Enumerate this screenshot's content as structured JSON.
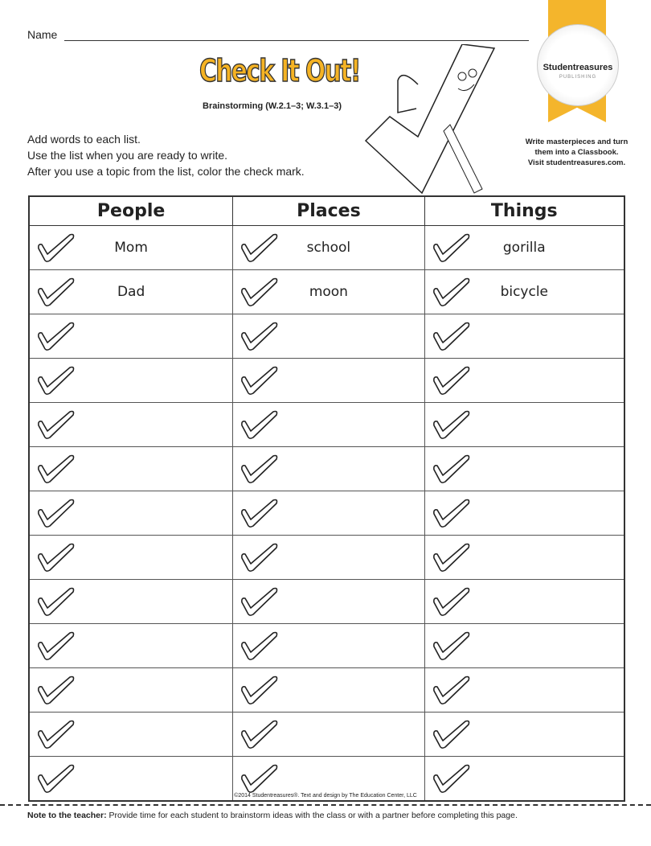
{
  "name_label": "Name",
  "title": "Check It Out!",
  "subtitle": "Brainstorming (W.2.1–3; W.3.1–3)",
  "instructions": [
    "Add words to each list.",
    "Use the list when you are ready to write.",
    "After you use a topic from the list, color the check mark."
  ],
  "badge": {
    "brand": "Studentreasures",
    "sub": "PUBLISHING",
    "promo": [
      "Write masterpieces and turn",
      "them into a Classbook.",
      "Visit studentreasures.com."
    ]
  },
  "colors": {
    "accent": "#f5b324"
  },
  "table": {
    "headers": [
      "People",
      "Places",
      "Things"
    ],
    "rows": [
      [
        "Mom",
        "school",
        "gorilla"
      ],
      [
        "Dad",
        "moon",
        "bicycle"
      ],
      [
        "",
        "",
        ""
      ],
      [
        "",
        "",
        ""
      ],
      [
        "",
        "",
        ""
      ],
      [
        "",
        "",
        ""
      ],
      [
        "",
        "",
        ""
      ],
      [
        "",
        "",
        ""
      ],
      [
        "",
        "",
        ""
      ],
      [
        "",
        "",
        ""
      ],
      [
        "",
        "",
        ""
      ],
      [
        "",
        "",
        ""
      ],
      [
        "",
        "",
        ""
      ]
    ],
    "icon": "check-mark-icon"
  },
  "copyright": "©2014 Studentreasures®. Text and design by The Education Center, LLC",
  "note": {
    "label": "Note to the teacher:",
    "text": " Provide time for each student to brainstorm ideas with the class or with a partner before completing this page."
  }
}
